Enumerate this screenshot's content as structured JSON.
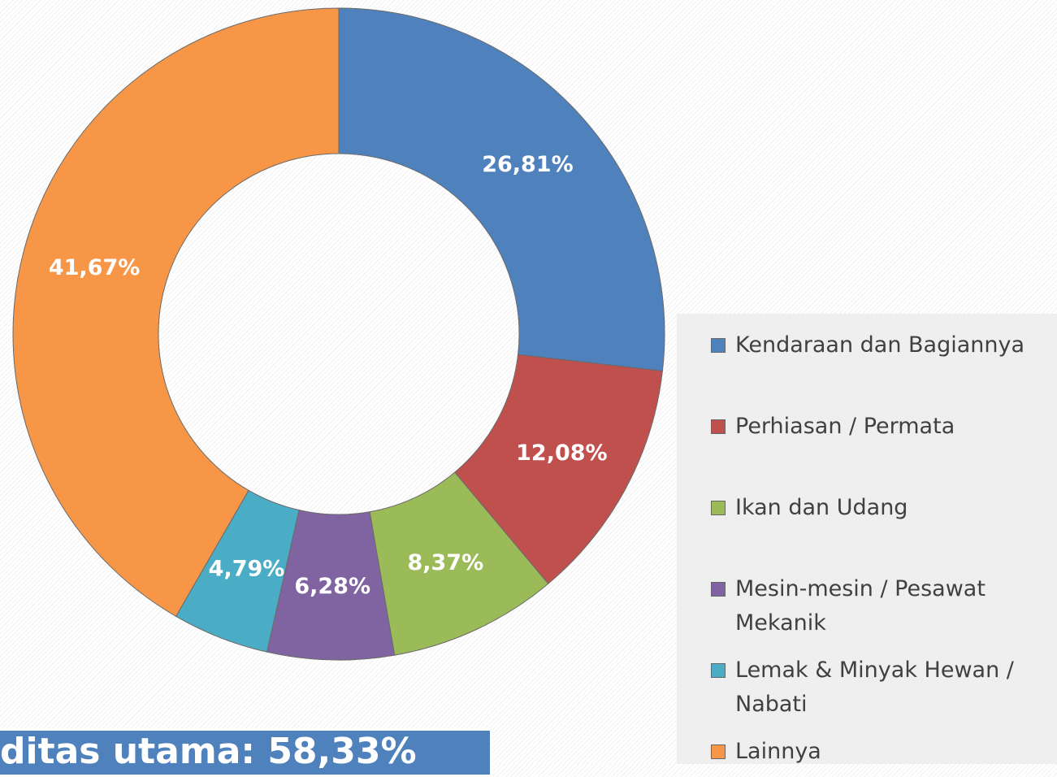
{
  "chart_data": {
    "type": "pie",
    "categories": [
      "Kendaraan dan Bagiannya",
      "Perhiasan / Permata",
      "Ikan dan Udang",
      "Mesin-mesin / Pesawat Mekanik",
      "Lemak & Minyak Hewan / Nabati",
      "Lainnya"
    ],
    "values": [
      26.81,
      12.08,
      8.37,
      6.28,
      4.79,
      41.67
    ],
    "value_labels": [
      "26,81%",
      "12,08%",
      "8,37%",
      "6,28%",
      "4,79%",
      "41,67%"
    ],
    "colors": [
      "#4f81bd",
      "#c0504d",
      "#9bbb59",
      "#8064a2",
      "#4bacc6",
      "#f79646"
    ],
    "donut": true,
    "legend": "right",
    "annotation": "ditas utama: 58,33%"
  }
}
